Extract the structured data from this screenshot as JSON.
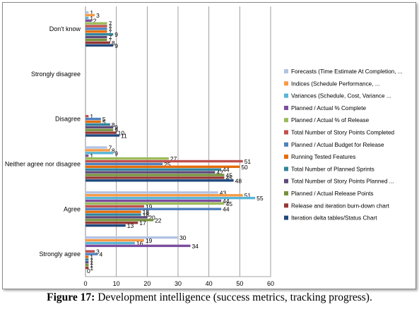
{
  "chart_data": {
    "type": "bar",
    "orientation": "horizontal",
    "xlim": [
      0,
      60
    ],
    "x_ticks": [
      0,
      10,
      20,
      30,
      40,
      50,
      60
    ],
    "grid": true,
    "legend_position": "right",
    "categories": [
      "Don't know",
      "Strongly disagree",
      "Disagree",
      "Neither agree nor disagree",
      "Agree",
      "Strongly agree"
    ],
    "series": [
      {
        "name": "Forecasts (Time Estimate At Completion, ...",
        "color": "#b3c3e3",
        "values": [
          1,
          null,
          0,
          7,
          43,
          30
        ]
      },
      {
        "name": "Indices (Schedule Performance, ...",
        "color": "#f79a45",
        "values": [
          3,
          null,
          0,
          8,
          51,
          19
        ]
      },
      {
        "name": "Variances (Schedule, Cost, Variance ...",
        "color": "#58b5d6",
        "values": [
          1,
          null,
          0,
          9,
          55,
          16
        ]
      },
      {
        "name": "Planned / Actual % Complete",
        "color": "#7b4d9e",
        "values": [
          2,
          null,
          0,
          1,
          44,
          34
        ]
      },
      {
        "name": "Planned / Actual % of Release",
        "color": "#9bbb59",
        "values": [
          7,
          null,
          0,
          27,
          45,
          0
        ]
      },
      {
        "name": "Total Number of Story Points Completed",
        "color": "#c0504d",
        "values": [
          7,
          null,
          1,
          51,
          19,
          3
        ]
      },
      {
        "name": "Planned / Actual Budget for Release",
        "color": "#4f81bd",
        "values": [
          7,
          null,
          5,
          25,
          44,
          4
        ]
      },
      {
        "name": "Running Tested Features",
        "color": "#e46c0a",
        "values": [
          7,
          null,
          5,
          50,
          18,
          1
        ]
      },
      {
        "name": "Total Number of Planned Sprints",
        "color": "#31859c",
        "values": [
          9,
          null,
          8,
          44,
          18,
          1
        ]
      },
      {
        "name": "Total Number of Story Points Planned ...",
        "color": "#5f497a",
        "values": [
          7,
          null,
          9,
          42,
          20,
          1
        ]
      },
      {
        "name": "Planned / Actual Release Points",
        "color": "#76923c",
        "values": [
          7,
          null,
          9,
          45,
          22,
          1
        ]
      },
      {
        "name": "Release and iteration burn-down chart",
        "color": "#953735",
        "values": [
          8,
          null,
          10,
          45,
          17,
          1
        ]
      },
      {
        "name": "Iteration delta tables/Status Chart",
        "color": "#1f497d",
        "values": [
          9,
          null,
          11,
          48,
          13,
          0
        ]
      }
    ]
  },
  "caption": {
    "label": "Figure 17:",
    "text": " Development intelligence (success metrics, tracking progress)."
  }
}
